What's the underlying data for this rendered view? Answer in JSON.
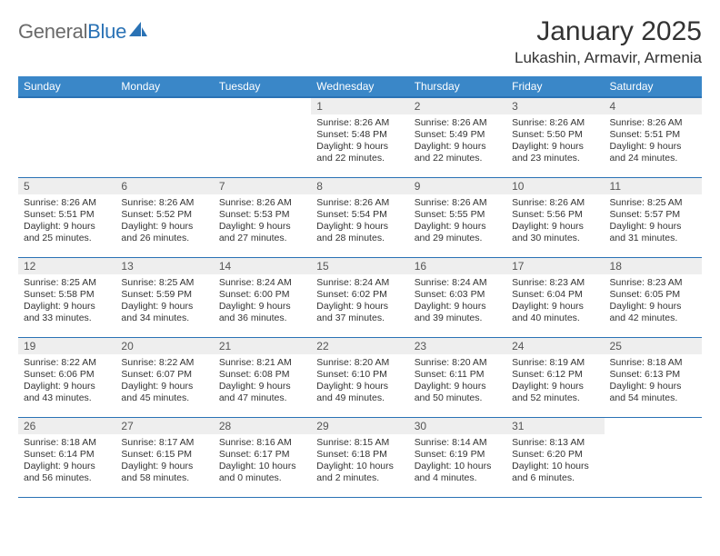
{
  "brand": {
    "part1": "General",
    "part2": "Blue"
  },
  "title": "January 2025",
  "location": "Lukashin, Armavir, Armenia",
  "colors": {
    "header_bg": "#3a87c8",
    "header_border": "#2a72b5",
    "daynum_bg": "#eeeeee",
    "text": "#333333",
    "logo_gray": "#6a6a6a",
    "logo_blue": "#2a72b5",
    "page_bg": "#ffffff"
  },
  "day_headers": [
    "Sunday",
    "Monday",
    "Tuesday",
    "Wednesday",
    "Thursday",
    "Friday",
    "Saturday"
  ],
  "weeks": [
    [
      {
        "n": "",
        "sr": "",
        "ss": "",
        "dl": ""
      },
      {
        "n": "",
        "sr": "",
        "ss": "",
        "dl": ""
      },
      {
        "n": "",
        "sr": "",
        "ss": "",
        "dl": ""
      },
      {
        "n": "1",
        "sr": "8:26 AM",
        "ss": "5:48 PM",
        "dl": "9 hours and 22 minutes"
      },
      {
        "n": "2",
        "sr": "8:26 AM",
        "ss": "5:49 PM",
        "dl": "9 hours and 22 minutes"
      },
      {
        "n": "3",
        "sr": "8:26 AM",
        "ss": "5:50 PM",
        "dl": "9 hours and 23 minutes"
      },
      {
        "n": "4",
        "sr": "8:26 AM",
        "ss": "5:51 PM",
        "dl": "9 hours and 24 minutes"
      }
    ],
    [
      {
        "n": "5",
        "sr": "8:26 AM",
        "ss": "5:51 PM",
        "dl": "9 hours and 25 minutes"
      },
      {
        "n": "6",
        "sr": "8:26 AM",
        "ss": "5:52 PM",
        "dl": "9 hours and 26 minutes"
      },
      {
        "n": "7",
        "sr": "8:26 AM",
        "ss": "5:53 PM",
        "dl": "9 hours and 27 minutes"
      },
      {
        "n": "8",
        "sr": "8:26 AM",
        "ss": "5:54 PM",
        "dl": "9 hours and 28 minutes"
      },
      {
        "n": "9",
        "sr": "8:26 AM",
        "ss": "5:55 PM",
        "dl": "9 hours and 29 minutes"
      },
      {
        "n": "10",
        "sr": "8:26 AM",
        "ss": "5:56 PM",
        "dl": "9 hours and 30 minutes"
      },
      {
        "n": "11",
        "sr": "8:25 AM",
        "ss": "5:57 PM",
        "dl": "9 hours and 31 minutes"
      }
    ],
    [
      {
        "n": "12",
        "sr": "8:25 AM",
        "ss": "5:58 PM",
        "dl": "9 hours and 33 minutes"
      },
      {
        "n": "13",
        "sr": "8:25 AM",
        "ss": "5:59 PM",
        "dl": "9 hours and 34 minutes"
      },
      {
        "n": "14",
        "sr": "8:24 AM",
        "ss": "6:00 PM",
        "dl": "9 hours and 36 minutes"
      },
      {
        "n": "15",
        "sr": "8:24 AM",
        "ss": "6:02 PM",
        "dl": "9 hours and 37 minutes"
      },
      {
        "n": "16",
        "sr": "8:24 AM",
        "ss": "6:03 PM",
        "dl": "9 hours and 39 minutes"
      },
      {
        "n": "17",
        "sr": "8:23 AM",
        "ss": "6:04 PM",
        "dl": "9 hours and 40 minutes"
      },
      {
        "n": "18",
        "sr": "8:23 AM",
        "ss": "6:05 PM",
        "dl": "9 hours and 42 minutes"
      }
    ],
    [
      {
        "n": "19",
        "sr": "8:22 AM",
        "ss": "6:06 PM",
        "dl": "9 hours and 43 minutes"
      },
      {
        "n": "20",
        "sr": "8:22 AM",
        "ss": "6:07 PM",
        "dl": "9 hours and 45 minutes"
      },
      {
        "n": "21",
        "sr": "8:21 AM",
        "ss": "6:08 PM",
        "dl": "9 hours and 47 minutes"
      },
      {
        "n": "22",
        "sr": "8:20 AM",
        "ss": "6:10 PM",
        "dl": "9 hours and 49 minutes"
      },
      {
        "n": "23",
        "sr": "8:20 AM",
        "ss": "6:11 PM",
        "dl": "9 hours and 50 minutes"
      },
      {
        "n": "24",
        "sr": "8:19 AM",
        "ss": "6:12 PM",
        "dl": "9 hours and 52 minutes"
      },
      {
        "n": "25",
        "sr": "8:18 AM",
        "ss": "6:13 PM",
        "dl": "9 hours and 54 minutes"
      }
    ],
    [
      {
        "n": "26",
        "sr": "8:18 AM",
        "ss": "6:14 PM",
        "dl": "9 hours and 56 minutes"
      },
      {
        "n": "27",
        "sr": "8:17 AM",
        "ss": "6:15 PM",
        "dl": "9 hours and 58 minutes"
      },
      {
        "n": "28",
        "sr": "8:16 AM",
        "ss": "6:17 PM",
        "dl": "10 hours and 0 minutes"
      },
      {
        "n": "29",
        "sr": "8:15 AM",
        "ss": "6:18 PM",
        "dl": "10 hours and 2 minutes"
      },
      {
        "n": "30",
        "sr": "8:14 AM",
        "ss": "6:19 PM",
        "dl": "10 hours and 4 minutes"
      },
      {
        "n": "31",
        "sr": "8:13 AM",
        "ss": "6:20 PM",
        "dl": "10 hours and 6 minutes"
      },
      {
        "n": "",
        "sr": "",
        "ss": "",
        "dl": ""
      }
    ]
  ],
  "labels": {
    "sunrise": "Sunrise:",
    "sunset": "Sunset:",
    "daylight": "Daylight:"
  }
}
